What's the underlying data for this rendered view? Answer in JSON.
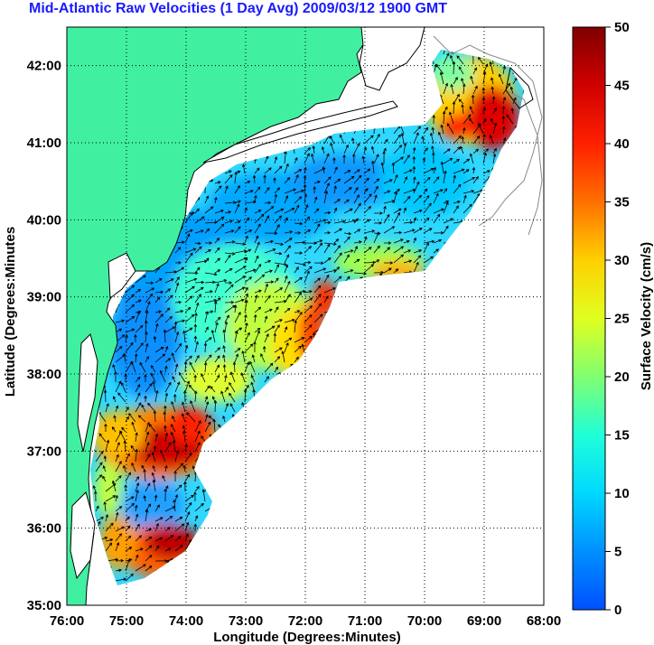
{
  "title": "Mid-Atlantic Raw Velocities (1 Day Avg) 2009/03/12 1900 GMT",
  "map": {
    "xlabel": "Longitude (Degrees:Minutes)",
    "ylabel": "Latitude (Degrees:Minutes",
    "lon_ticks": [
      "76:00",
      "75:00",
      "74:00",
      "73:00",
      "72:00",
      "71:00",
      "70:00",
      "69:00",
      "68:00"
    ],
    "lat_ticks": [
      "42:00",
      "41:00",
      "40:00",
      "39:00",
      "38:00",
      "37:00",
      "36:00",
      "35:00"
    ],
    "lon_range": [
      -76,
      -68
    ],
    "lat_range": [
      35,
      42.5
    ],
    "land_color": "#40f0a0",
    "coast_color": "#000000",
    "grid_style": "dotted"
  },
  "colorbar": {
    "label": "Surface Velocity (cm/s)",
    "ticks": [
      "0",
      "5",
      "10",
      "15",
      "20",
      "25",
      "30",
      "35",
      "40",
      "45",
      "50"
    ],
    "range": [
      0,
      50
    ],
    "colors": [
      "#0060ff",
      "#00a8ff",
      "#00e8ff",
      "#30ffc8",
      "#a0ff50",
      "#ffff00",
      "#ffb000",
      "#ff5000",
      "#ff0000",
      "#c00000",
      "#800000"
    ]
  }
}
